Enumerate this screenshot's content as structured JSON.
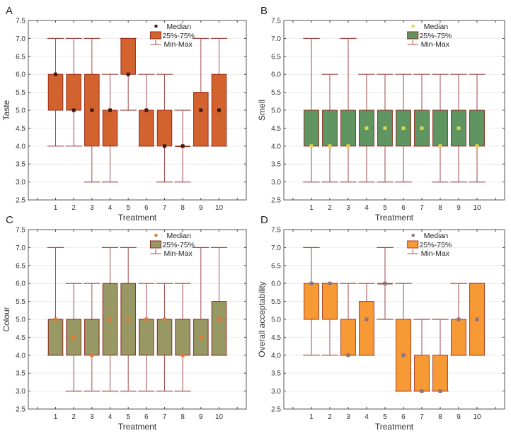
{
  "chart_data": [
    {
      "panel_label": "A",
      "type": "boxplot",
      "title": "",
      "xlabel": "Treatment",
      "ylabel": "Taste",
      "categories": [
        "1",
        "2",
        "3",
        "4",
        "5",
        "6",
        "7",
        "8",
        "9",
        "10"
      ],
      "ylim": [
        2.5,
        7.5
      ],
      "yticks": [
        "2.5",
        "3.0",
        "3.5",
        "4.0",
        "4.5",
        "5.0",
        "5.5",
        "6.0",
        "6.5",
        "7.0",
        "7.5"
      ],
      "grid": true,
      "legend": {
        "position": "top-right",
        "entries": [
          "Median",
          "25%-75%",
          "Min-Max"
        ]
      },
      "colors": {
        "box": "#d2622e",
        "box_edge": "#9b2a1a",
        "median": "#3a1a10",
        "whisker": "#a24a4a"
      },
      "series": [
        {
          "min": 4,
          "q1": 5,
          "median": 6,
          "q3": 6,
          "max": 7
        },
        {
          "min": 4,
          "q1": 5,
          "median": 5,
          "q3": 6,
          "max": 7
        },
        {
          "min": 3,
          "q1": 4,
          "median": 5,
          "q3": 6,
          "max": 7
        },
        {
          "min": 3,
          "q1": 4,
          "median": 5,
          "q3": 5,
          "max": 6
        },
        {
          "min": 5,
          "q1": 6,
          "median": 6,
          "q3": 7,
          "max": 7
        },
        {
          "min": 4,
          "q1": 4,
          "median": 5,
          "q3": 5,
          "max": 6
        },
        {
          "min": 3,
          "q1": 4,
          "median": 4,
          "q3": 5,
          "max": 6
        },
        {
          "min": 3,
          "q1": 4,
          "median": 4,
          "q3": 4,
          "max": 5
        },
        {
          "min": 4,
          "q1": 4,
          "median": 5,
          "q3": 5.5,
          "max": 7
        },
        {
          "min": 4,
          "q1": 4,
          "median": 5,
          "q3": 6,
          "max": 7
        }
      ]
    },
    {
      "panel_label": "B",
      "type": "boxplot",
      "title": "",
      "xlabel": "Treatment",
      "ylabel": "Smell",
      "categories": [
        "1",
        "2",
        "3",
        "4",
        "5",
        "6",
        "7",
        "8",
        "9",
        "10"
      ],
      "ylim": [
        2.5,
        7.5
      ],
      "yticks": [
        "2.5",
        "3.0",
        "3.5",
        "4.0",
        "4.5",
        "5.0",
        "5.5",
        "6.0",
        "6.5",
        "7.0",
        "7.5"
      ],
      "grid": true,
      "legend": {
        "position": "top-right",
        "entries": [
          "Median",
          "25%-75%",
          "Min-Max"
        ]
      },
      "colors": {
        "box": "#5f9560",
        "box_edge": "#8a2a20",
        "median": "#e2d54a",
        "whisker": "#a24a4a"
      },
      "series": [
        {
          "min": 3,
          "q1": 4,
          "median": 4,
          "q3": 5,
          "max": 7
        },
        {
          "min": 3,
          "q1": 4,
          "median": 4,
          "q3": 5,
          "max": 6
        },
        {
          "min": 3,
          "q1": 4,
          "median": 4,
          "q3": 5,
          "max": 7
        },
        {
          "min": 3,
          "q1": 4,
          "median": 4.5,
          "q3": 5,
          "max": 6
        },
        {
          "min": 3,
          "q1": 4,
          "median": 4.5,
          "q3": 5,
          "max": 6
        },
        {
          "min": 3,
          "q1": 4,
          "median": 4.5,
          "q3": 5,
          "max": 6
        },
        {
          "min": 4,
          "q1": 4,
          "median": 4.5,
          "q3": 5,
          "max": 6
        },
        {
          "min": 3,
          "q1": 4,
          "median": 4,
          "q3": 5,
          "max": 6
        },
        {
          "min": 3,
          "q1": 4,
          "median": 4.5,
          "q3": 5,
          "max": 6
        },
        {
          "min": 3,
          "q1": 4,
          "median": 4,
          "q3": 5,
          "max": 6
        }
      ]
    },
    {
      "panel_label": "C",
      "type": "boxplot",
      "title": "",
      "xlabel": "Treatment",
      "ylabel": "Colour",
      "categories": [
        "1",
        "2",
        "3",
        "4",
        "5",
        "6",
        "7",
        "8",
        "9",
        "10"
      ],
      "ylim": [
        2.5,
        7.5
      ],
      "yticks": [
        "2.5",
        "3.0",
        "3.5",
        "4.0",
        "4.5",
        "5.0",
        "5.5",
        "6.0",
        "6.5",
        "7.0",
        "7.5"
      ],
      "grid": true,
      "legend": {
        "position": "top-right",
        "entries": [
          "Median",
          "25%-75%",
          "Min-Max"
        ]
      },
      "colors": {
        "box": "#979863",
        "box_edge": "#8a2a20",
        "median": "#e07a30",
        "whisker": "#a24a4a"
      },
      "series": [
        {
          "min": 4,
          "q1": 4,
          "median": 5,
          "q3": 5,
          "max": 7
        },
        {
          "min": 3,
          "q1": 4,
          "median": 4.5,
          "q3": 5,
          "max": 6
        },
        {
          "min": 3,
          "q1": 4,
          "median": 4,
          "q3": 5,
          "max": 6
        },
        {
          "min": 3,
          "q1": 4,
          "median": 5,
          "q3": 6,
          "max": 7
        },
        {
          "min": 3,
          "q1": 4,
          "median": 5,
          "q3": 6,
          "max": 7
        },
        {
          "min": 3,
          "q1": 4,
          "median": 5,
          "q3": 5,
          "max": 6
        },
        {
          "min": 3,
          "q1": 4,
          "median": 5,
          "q3": 5,
          "max": 6
        },
        {
          "min": 3,
          "q1": 4,
          "median": 4,
          "q3": 5,
          "max": 6
        },
        {
          "min": 4,
          "q1": 4,
          "median": 4.5,
          "q3": 5,
          "max": 7
        },
        {
          "min": 4,
          "q1": 4,
          "median": 5,
          "q3": 5.5,
          "max": 7
        }
      ]
    },
    {
      "panel_label": "D",
      "type": "boxplot",
      "title": "",
      "xlabel": "Treatment",
      "ylabel": "Overall acceptability",
      "categories": [
        "1",
        "2",
        "3",
        "4",
        "5",
        "6",
        "7",
        "8",
        "9",
        "10"
      ],
      "ylim": [
        2.5,
        7.5
      ],
      "yticks": [
        "2.5",
        "3.0",
        "3.5",
        "4.0",
        "4.5",
        "5.0",
        "5.5",
        "6.0",
        "6.5",
        "7.0",
        "7.5"
      ],
      "grid": true,
      "legend": {
        "position": "top-right",
        "entries": [
          "Median",
          "25%-75%",
          "Min-Max"
        ]
      },
      "colors": {
        "box": "#f79a35",
        "box_edge": "#a83a20",
        "median": "#8a7480",
        "whisker": "#a24a4a"
      },
      "series": [
        {
          "min": 4,
          "q1": 5,
          "median": 6,
          "q3": 6,
          "max": 7
        },
        {
          "min": 4,
          "q1": 5,
          "median": 6,
          "q3": 6,
          "max": 6
        },
        {
          "min": 4,
          "q1": 4,
          "median": 4,
          "q3": 5,
          "max": 6
        },
        {
          "min": 4,
          "q1": 4,
          "median": 5,
          "q3": 5.5,
          "max": 6
        },
        {
          "min": 5,
          "q1": 6,
          "median": 6,
          "q3": 6,
          "max": 7
        },
        {
          "min": 3,
          "q1": 3,
          "median": 4,
          "q3": 5,
          "max": 6
        },
        {
          "min": 3,
          "q1": 3,
          "median": 3,
          "q3": 4,
          "max": 5
        },
        {
          "min": 3,
          "q1": 3,
          "median": 3,
          "q3": 4,
          "max": 5
        },
        {
          "min": 4,
          "q1": 4,
          "median": 5,
          "q3": 5,
          "max": 6
        },
        {
          "min": 4,
          "q1": 4,
          "median": 5,
          "q3": 6,
          "max": 6
        }
      ]
    }
  ]
}
